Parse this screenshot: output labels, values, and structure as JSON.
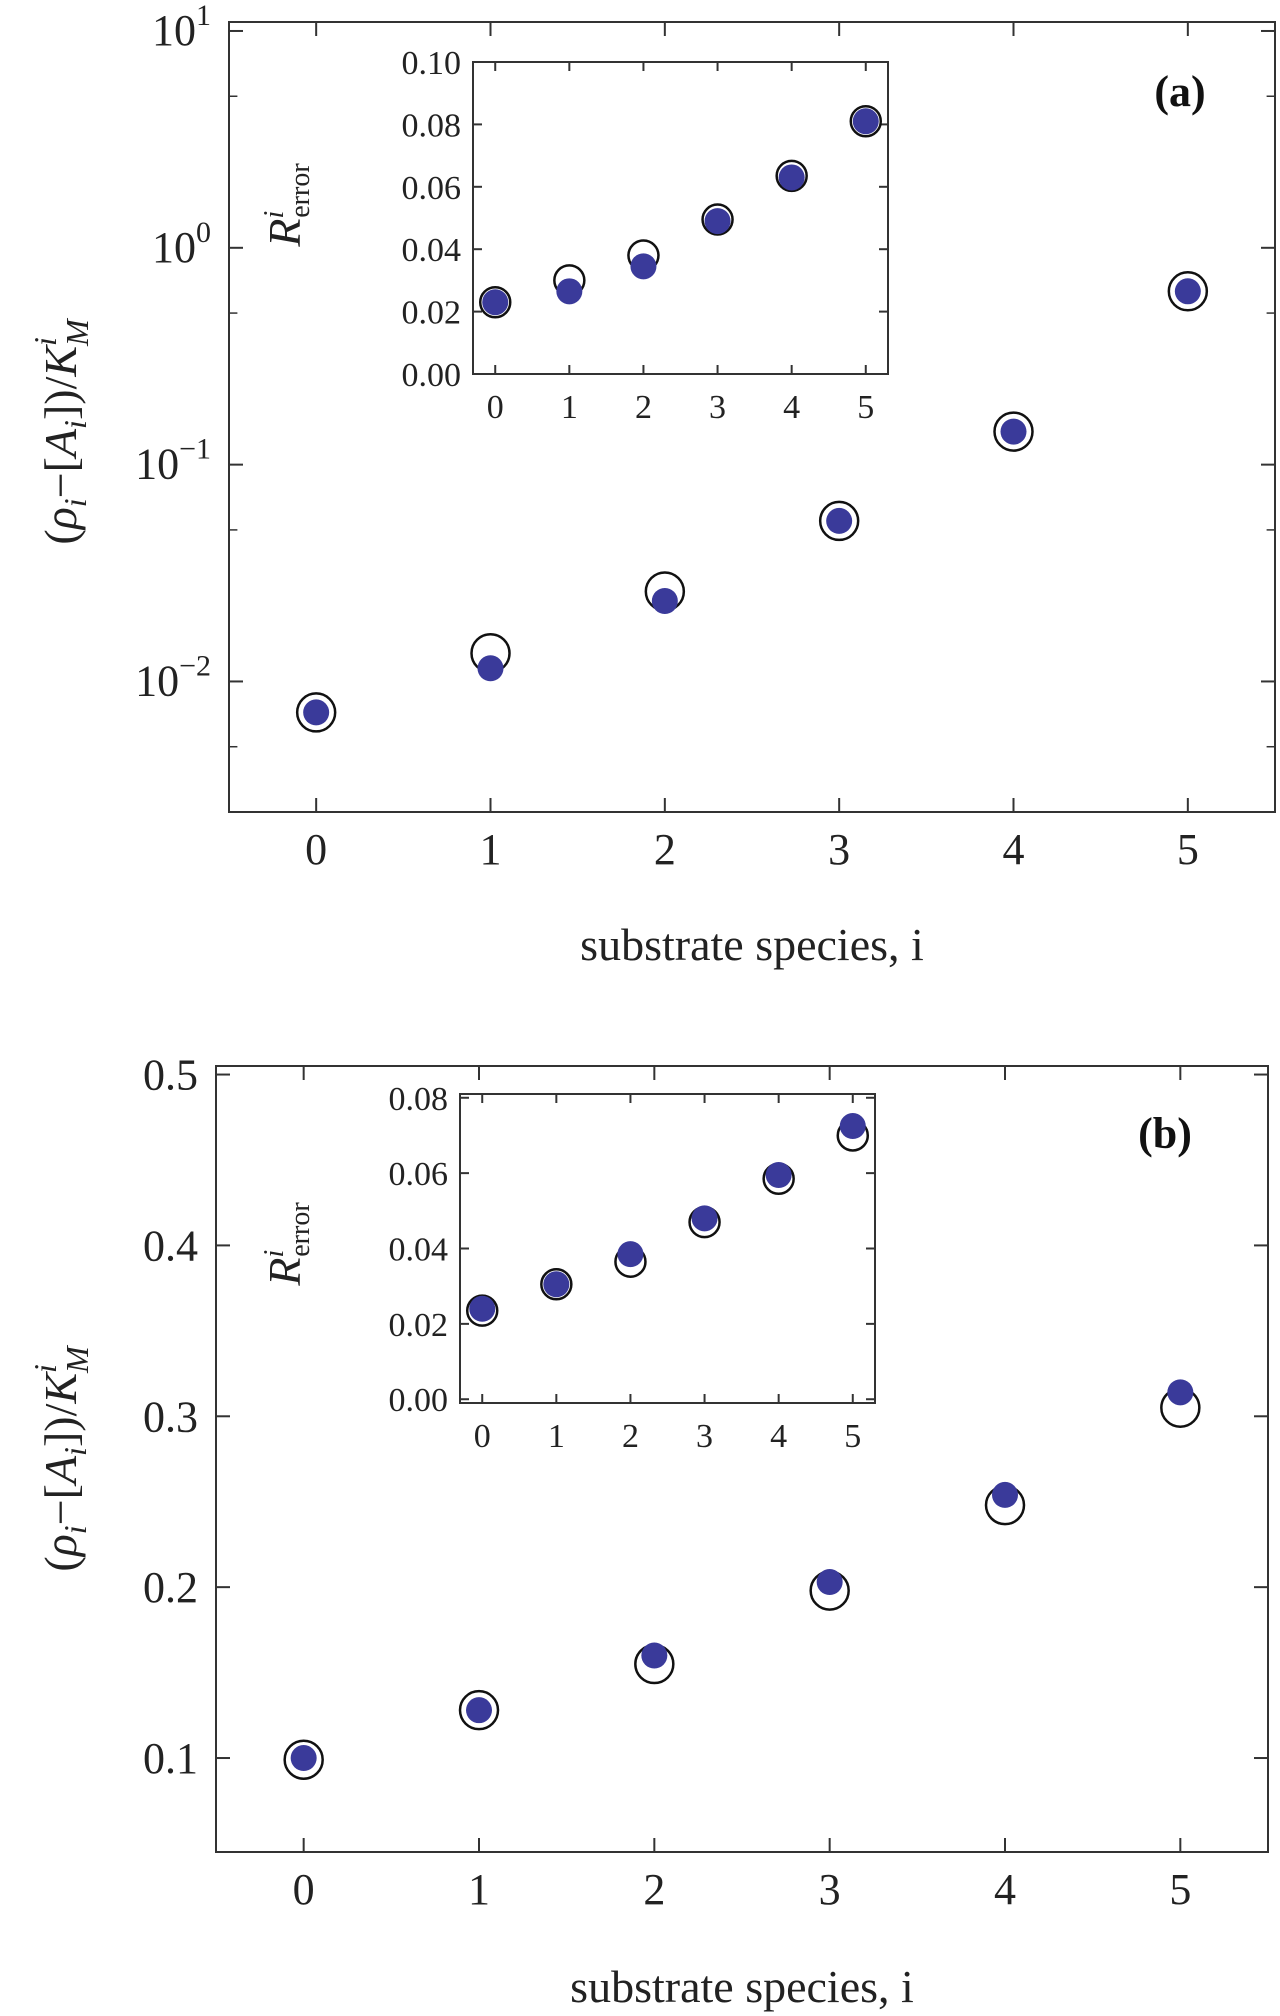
{
  "colors": {
    "filled": "#3a3a9a",
    "open_stroke": "#111111",
    "axis": "#333333"
  },
  "chart_data": [
    {
      "type": "scatter",
      "panel_label": "(a)",
      "xlabel": "substrate species, i",
      "ylabel": "(ρi−[Ai])/KMi",
      "ylabel_parts": {
        "open": "(",
        "rho": "ρ",
        "i": "i",
        "minus": "−[",
        "A": "A",
        "close": "])/",
        "K": "K",
        "sup": "i",
        "sub": "M"
      },
      "yscale": "log",
      "xlim": [
        -0.5,
        5.5
      ],
      "ylim": [
        0.0025,
        11
      ],
      "xticks": [
        "0",
        "1",
        "2",
        "3",
        "4",
        "5"
      ],
      "yticks_major": [
        {
          "value": 0.01,
          "base": "10",
          "exp": "−2"
        },
        {
          "value": 0.1,
          "base": "10",
          "exp": "−1"
        },
        {
          "value": 1,
          "base": "10",
          "exp": "0"
        },
        {
          "value": 10,
          "base": "10",
          "exp": "1"
        }
      ],
      "yticks_minor": [
        0.005,
        0.05,
        0.5,
        5
      ],
      "series": [
        {
          "style": "open",
          "x": [
            0,
            1,
            2,
            3,
            4,
            5
          ],
          "y": [
            0.0072,
            0.0135,
            0.026,
            0.055,
            0.142,
            0.63
          ]
        },
        {
          "style": "filled",
          "x": [
            0,
            1,
            2,
            3,
            4,
            5
          ],
          "y": [
            0.0072,
            0.0115,
            0.0235,
            0.055,
            0.142,
            0.63
          ]
        }
      ],
      "inset": {
        "ylabel": "Rierror",
        "ylabel_parts": {
          "R": "R",
          "sup": "i",
          "sub": "error"
        },
        "xlim": [
          -0.3,
          5.3
        ],
        "ylim": [
          0,
          0.1
        ],
        "xticks": [
          "0",
          "1",
          "2",
          "3",
          "4",
          "5"
        ],
        "yticks": [
          "0.00",
          "0.02",
          "0.04",
          "0.06",
          "0.08",
          "0.10"
        ],
        "ytick_values": [
          0,
          0.02,
          0.04,
          0.06,
          0.08,
          0.1
        ],
        "series": [
          {
            "style": "open",
            "x": [
              0,
              1,
              2,
              3,
              4,
              5
            ],
            "y": [
              0.023,
              0.03,
              0.038,
              0.0495,
              0.0635,
              0.081
            ]
          },
          {
            "style": "filled",
            "x": [
              0,
              1,
              2,
              3,
              4,
              5
            ],
            "y": [
              0.023,
              0.0265,
              0.0345,
              0.049,
              0.063,
              0.081
            ]
          }
        ]
      }
    },
    {
      "type": "scatter",
      "panel_label": "(b)",
      "xlabel": "substrate species, i",
      "ylabel": "(ρi−[Ai])/KMi",
      "ylabel_parts": {
        "open": "(",
        "rho": "ρ",
        "i": "i",
        "minus": "−[",
        "A": "A",
        "close": "])/",
        "K": "K",
        "sup": "i",
        "sub": "M"
      },
      "yscale": "linear",
      "xlim": [
        -0.5,
        5.5
      ],
      "ylim": [
        0.045,
        0.505
      ],
      "xticks": [
        "0",
        "1",
        "2",
        "3",
        "4",
        "5"
      ],
      "yticks": [
        "0.1",
        "0.2",
        "0.3",
        "0.4",
        "0.5"
      ],
      "ytick_values": [
        0.1,
        0.2,
        0.3,
        0.4,
        0.5
      ],
      "series": [
        {
          "style": "open",
          "x": [
            0,
            1,
            2,
            3,
            4,
            5
          ],
          "y": [
            0.099,
            0.128,
            0.155,
            0.198,
            0.248,
            0.305
          ]
        },
        {
          "style": "filled",
          "x": [
            0,
            1,
            2,
            3,
            4,
            5
          ],
          "y": [
            0.1,
            0.128,
            0.16,
            0.203,
            0.254,
            0.314
          ]
        }
      ],
      "inset": {
        "ylabel": "Rierror",
        "ylabel_parts": {
          "R": "R",
          "sup": "i",
          "sub": "error"
        },
        "xlim": [
          -0.3,
          5.3
        ],
        "ylim": [
          -0.001,
          0.081
        ],
        "xticks": [
          "0",
          "1",
          "2",
          "3",
          "4",
          "5"
        ],
        "yticks": [
          "0.00",
          "0.02",
          "0.04",
          "0.06",
          "0.08"
        ],
        "ytick_values": [
          0,
          0.02,
          0.04,
          0.06,
          0.08
        ],
        "series": [
          {
            "style": "open",
            "x": [
              0,
              1,
              2,
              3,
              4,
              5
            ],
            "y": [
              0.0235,
              0.0305,
              0.0365,
              0.047,
              0.0585,
              0.07
            ]
          },
          {
            "style": "filled",
            "x": [
              0,
              1,
              2,
              3,
              4,
              5
            ],
            "y": [
              0.024,
              0.0305,
              0.0385,
              0.048,
              0.0595,
              0.0725
            ]
          }
        ]
      }
    }
  ]
}
